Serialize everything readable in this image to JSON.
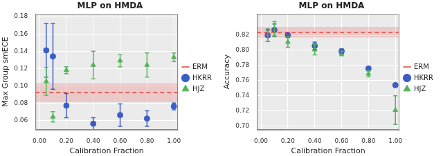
{
  "chart_data": [
    {
      "type": "scatter",
      "title": "MLP on HMDA",
      "x_label": "Calibration Fraction",
      "y_label": "Max Group smECE",
      "xlim": [
        -0.03,
        1.03
      ],
      "xticks": [
        {
          "value": 0,
          "label": "0.00"
        },
        {
          "value": 0.2,
          "label": "0.20"
        },
        {
          "value": 0.4,
          "label": "0.40"
        },
        {
          "value": 0.6,
          "label": "0.60"
        },
        {
          "value": 0.8,
          "label": "0.80"
        },
        {
          "value": 1,
          "label": "1.00"
        }
      ],
      "ylim": [
        0.049,
        0.183
      ],
      "yticks": [
        0.06,
        0.08,
        {
          "value": 0.1,
          "label": "0.10"
        },
        0.12,
        0.14,
        0.16,
        0.18
      ],
      "grid": true,
      "legend": "right",
      "series": [
        {
          "name": "ERM",
          "type": "hline",
          "color": "#e8403a",
          "line_style": "dashed",
          "value": 0.092,
          "band_low": 0.081,
          "band_high": 0.103
        },
        {
          "name": "HKRR",
          "color": "#3b5ec6",
          "marker": "circle",
          "x": [
            0.05,
            0.1,
            0.2,
            0.4,
            0.6,
            0.8,
            1.0
          ],
          "values": [
            0.141,
            0.134,
            0.077,
            0.056,
            0.066,
            0.062,
            0.076
          ],
          "errors": [
            0.031,
            0.038,
            0.014,
            0.007,
            0.013,
            0.009,
            0.004
          ]
        },
        {
          "name": "HJZ",
          "color": "#55b35a",
          "marker": "triangle",
          "x": [
            0.05,
            0.1,
            0.2,
            0.4,
            0.6,
            0.8,
            1.0
          ],
          "values": [
            0.105,
            0.064,
            0.118,
            0.124,
            0.129,
            0.124,
            0.133
          ],
          "errors": [
            0.016,
            0.006,
            0.004,
            0.016,
            0.007,
            0.014,
            0.005
          ]
        }
      ]
    },
    {
      "type": "scatter",
      "title": "MLP on HMDA",
      "x_label": "Calibration Fraction",
      "y_label": "Accuracy",
      "xlim": [
        -0.03,
        1.03
      ],
      "xticks": [
        {
          "value": 0,
          "label": "0.00"
        },
        {
          "value": 0.2,
          "label": "0.20"
        },
        {
          "value": 0.4,
          "label": "0.40"
        },
        {
          "value": 0.6,
          "label": "0.60"
        },
        {
          "value": 0.8,
          "label": "0.80"
        },
        {
          "value": 1,
          "label": "1.00"
        }
      ],
      "ylim": [
        0.695,
        0.848
      ],
      "yticks": [
        {
          "value": 0.7,
          "label": "0.70"
        },
        0.72,
        0.74,
        0.76,
        0.78,
        {
          "value": 0.8,
          "label": "0.80"
        },
        0.82
      ],
      "grid": true,
      "legend": "right",
      "series": [
        {
          "name": "ERM",
          "type": "hline",
          "color": "#e8403a",
          "line_style": "dashed",
          "value": 0.824,
          "band_low": 0.817,
          "band_high": 0.831
        },
        {
          "name": "HKRR",
          "color": "#3b5ec6",
          "marker": "circle",
          "x": [
            0.05,
            0.1,
            0.2,
            0.4,
            0.6,
            0.8,
            1.0
          ],
          "values": [
            0.82,
            0.827,
            0.82,
            0.806,
            0.799,
            0.776,
            0.754
          ],
          "errors": [
            0.008,
            0.008,
            0.003,
            0.005,
            0.003,
            0.003,
            0.001
          ]
        },
        {
          "name": "HJZ",
          "color": "#55b35a",
          "marker": "triangle",
          "x": [
            0.05,
            0.1,
            0.2,
            0.4,
            0.6,
            0.8,
            1.0
          ],
          "values": [
            0.819,
            0.828,
            0.811,
            0.801,
            0.796,
            0.769,
            0.721
          ],
          "errors": [
            0.007,
            0.01,
            0.007,
            0.007,
            0.003,
            0.004,
            0.019
          ]
        }
      ]
    }
  ]
}
